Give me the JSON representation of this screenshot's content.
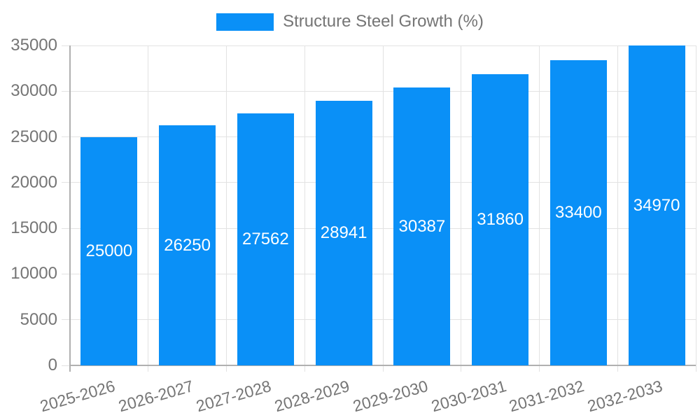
{
  "legend": {
    "label": "Structure Steel Growth (%)"
  },
  "chart_data": {
    "type": "bar",
    "title": "Structure Steel Growth (%)",
    "categories": [
      "2025-2026",
      "2026-2027",
      "2027-2028",
      "2028-2029",
      "2029-2030",
      "2030-2031",
      "2031-2032",
      "2032-2033"
    ],
    "series": [
      {
        "name": "Structure Steel Growth (%)",
        "values": [
          25000,
          26250,
          27562,
          28941,
          30387,
          31860,
          33400,
          34970
        ]
      }
    ],
    "xlabel": "",
    "ylabel": "",
    "ylim": [
      0,
      35000
    ],
    "y_ticks": [
      0,
      5000,
      10000,
      15000,
      20000,
      25000,
      30000,
      35000
    ],
    "grid": true,
    "legend_position": "top",
    "x_tick_label_rotation_deg": -16,
    "colors": {
      "bar": "#0a90f7",
      "value_label": "#ffffff",
      "axis_text": "#757575",
      "gridline": "#e2e2e2",
      "axis_line": "#b0b0b0",
      "background": "#ffffff"
    }
  }
}
